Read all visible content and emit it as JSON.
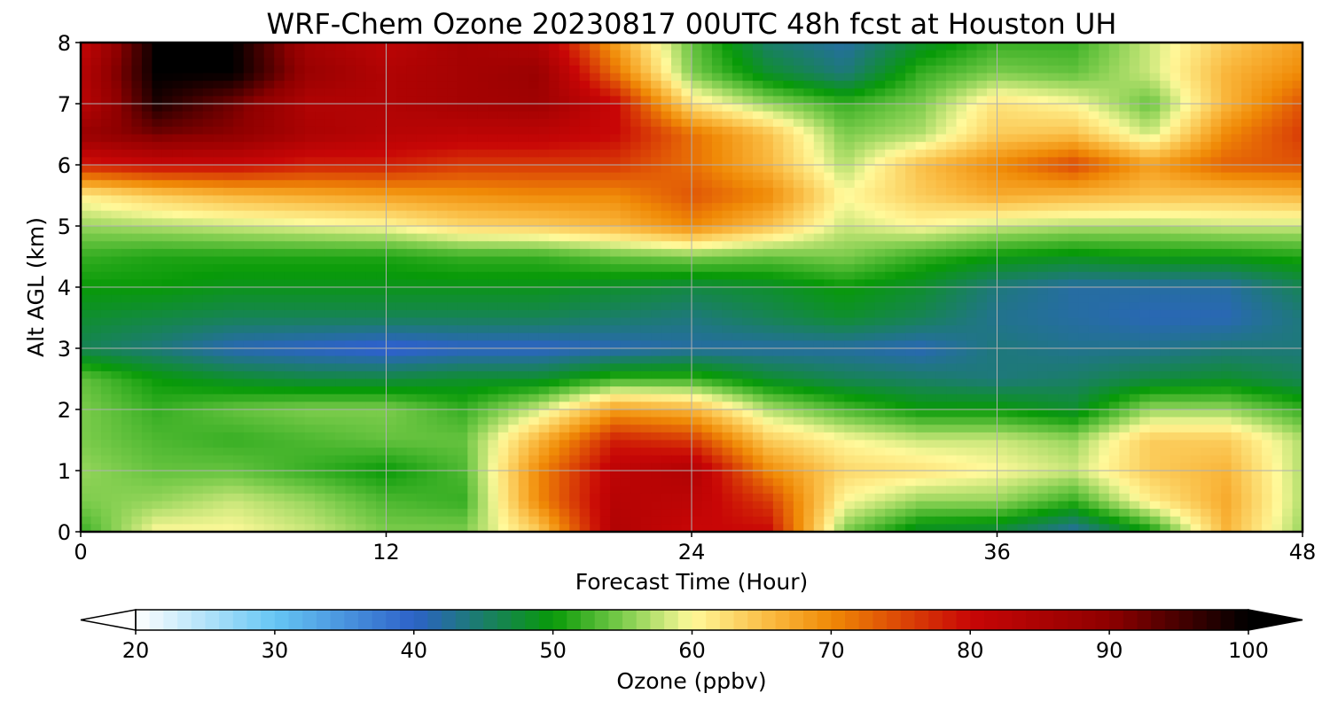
{
  "chart_data": {
    "type": "heatmap",
    "title": "WRF-Chem Ozone  20230817 00UTC 48h fcst at Houston UH",
    "xlabel": "Forecast Time (Hour)",
    "ylabel": "Alt AGL (km)",
    "xlim": [
      0,
      48
    ],
    "ylim": [
      0,
      8
    ],
    "xticks": [
      "0",
      "12",
      "24",
      "36",
      "48"
    ],
    "yticks": [
      "0",
      "1",
      "2",
      "3",
      "4",
      "5",
      "6",
      "7",
      "8"
    ],
    "grid": true,
    "colorbar": {
      "label": "Ozone  (ppbv)",
      "range": [
        20,
        100
      ],
      "ticks": [
        "20",
        "30",
        "40",
        "50",
        "60",
        "70",
        "80",
        "90",
        "100"
      ],
      "extend": "both",
      "stops": [
        [
          20,
          "#ffffff"
        ],
        [
          30,
          "#66c6f4"
        ],
        [
          40,
          "#2d62c8"
        ],
        [
          50,
          "#089a08"
        ],
        [
          55,
          "#7ccc4c"
        ],
        [
          60,
          "#fff99a"
        ],
        [
          66,
          "#f9b53a"
        ],
        [
          70,
          "#f08a06"
        ],
        [
          76,
          "#d83a06"
        ],
        [
          80,
          "#c80606"
        ],
        [
          90,
          "#8e0000"
        ],
        [
          100,
          "#000000"
        ]
      ]
    },
    "grid_hours": [
      0,
      3,
      6,
      9,
      12,
      15,
      18,
      21,
      24,
      27,
      30,
      33,
      36,
      39,
      42,
      45,
      48
    ],
    "grid_alt_km": [
      0,
      0.5,
      1,
      1.5,
      2,
      2.5,
      3,
      3.5,
      4,
      4.5,
      5,
      5.5,
      6,
      6.5,
      7,
      7.5,
      8
    ],
    "ozone_ppbv": [
      [
        52,
        60,
        60,
        58,
        55,
        55,
        64,
        84,
        80,
        80,
        55,
        48,
        47,
        42,
        50,
        66,
        56
      ],
      [
        55,
        56,
        58,
        56,
        53,
        52,
        70,
        83,
        82,
        76,
        60,
        56,
        56,
        52,
        61,
        67,
        57
      ],
      [
        56,
        54,
        54,
        52,
        50,
        53,
        70,
        82,
        84,
        70,
        63,
        62,
        60,
        58,
        64,
        66,
        57
      ],
      [
        55,
        53,
        52,
        53,
        54,
        54,
        66,
        78,
        76,
        64,
        60,
        58,
        58,
        56,
        64,
        64,
        57
      ],
      [
        55,
        52,
        54,
        55,
        55,
        52,
        58,
        68,
        66,
        57,
        53,
        50,
        50,
        48,
        56,
        56,
        52
      ],
      [
        54,
        50,
        48,
        47,
        47,
        48,
        48,
        52,
        52,
        48,
        46,
        45,
        44,
        45,
        47,
        48,
        46
      ],
      [
        46,
        44,
        41,
        40,
        39,
        40,
        40,
        41,
        42,
        42,
        42,
        41,
        44,
        43,
        43,
        44,
        44
      ],
      [
        48,
        47,
        46,
        46,
        46,
        46,
        46,
        45,
        44,
        46,
        48,
        46,
        43,
        42,
        41,
        41,
        44
      ],
      [
        50,
        50,
        49,
        49,
        49,
        49,
        49,
        48,
        47,
        48,
        50,
        48,
        44,
        42,
        42,
        42,
        46
      ],
      [
        52,
        51,
        51,
        51,
        51,
        52,
        52,
        54,
        55,
        54,
        55,
        52,
        50,
        49,
        50,
        50,
        51
      ],
      [
        56,
        57,
        58,
        59,
        60,
        63,
        64,
        66,
        70,
        65,
        58,
        60,
        58,
        57,
        57,
        58,
        58
      ],
      [
        61,
        64,
        66,
        67,
        68,
        69,
        70,
        70,
        74,
        70,
        60,
        64,
        67,
        66,
        65,
        65,
        66
      ],
      [
        78,
        80,
        80,
        78,
        78,
        76,
        76,
        76,
        72,
        66,
        57,
        65,
        70,
        75,
        68,
        73,
        74
      ],
      [
        88,
        92,
        90,
        85,
        83,
        82,
        82,
        80,
        72,
        65,
        55,
        57,
        64,
        65,
        58,
        70,
        76
      ],
      [
        82,
        98,
        92,
        84,
        84,
        86,
        87,
        80,
        62,
        56,
        52,
        55,
        62,
        60,
        54,
        66,
        74
      ],
      [
        83,
        100,
        100,
        88,
        84,
        86,
        88,
        72,
        55,
        48,
        44,
        52,
        55,
        54,
        58,
        66,
        70
      ],
      [
        80,
        100,
        100,
        86,
        82,
        86,
        84,
        68,
        54,
        45,
        42,
        48,
        52,
        52,
        58,
        64,
        68
      ]
    ]
  }
}
